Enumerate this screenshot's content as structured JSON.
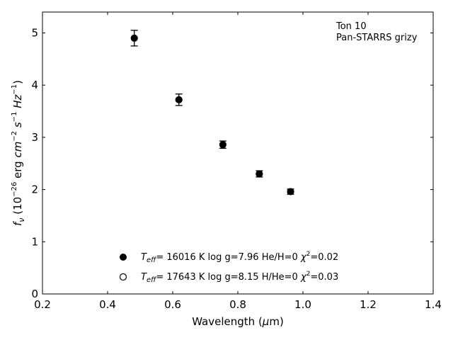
{
  "chart_data": {
    "type": "scatter",
    "xlabel": "Wavelength (μm)",
    "ylabel": "f_ν (10^−26 erg cm^−2 s^−1 Hz^−1)",
    "xlim": [
      0.2,
      1.4
    ],
    "ylim": [
      0,
      5.4
    ],
    "x_ticks": [
      0.2,
      0.4,
      0.6,
      0.8,
      1.0,
      1.2,
      1.4
    ],
    "x_tick_labels": [
      "0.2",
      "0.4",
      "0.6",
      "0.8",
      "1.0",
      "1.2",
      "1.4"
    ],
    "y_ticks": [
      0,
      1,
      2,
      3,
      4,
      5
    ],
    "y_tick_labels": [
      "0",
      "1",
      "2",
      "3",
      "4",
      "5"
    ],
    "grid": false,
    "annotation": [
      "Ton 10",
      "Pan-STARRS grizy"
    ],
    "series": [
      {
        "marker": "filled-circle",
        "x": [
          0.482,
          0.619,
          0.754,
          0.866,
          0.962
        ],
        "y": [
          4.9,
          3.72,
          2.86,
          2.3,
          1.96
        ],
        "yerr": [
          0.15,
          0.11,
          0.07,
          0.06,
          0.05
        ]
      }
    ],
    "legend": {
      "placement": "lower-center",
      "entries": [
        {
          "marker": "filled-circle",
          "teff": "16016",
          "logg": "7.96",
          "comp": "He/H=0",
          "chi2": "0.02"
        },
        {
          "marker": "open-circle",
          "teff": "17643",
          "logg": "8.15",
          "comp": "H/He=0",
          "chi2": "0.03"
        }
      ]
    }
  }
}
